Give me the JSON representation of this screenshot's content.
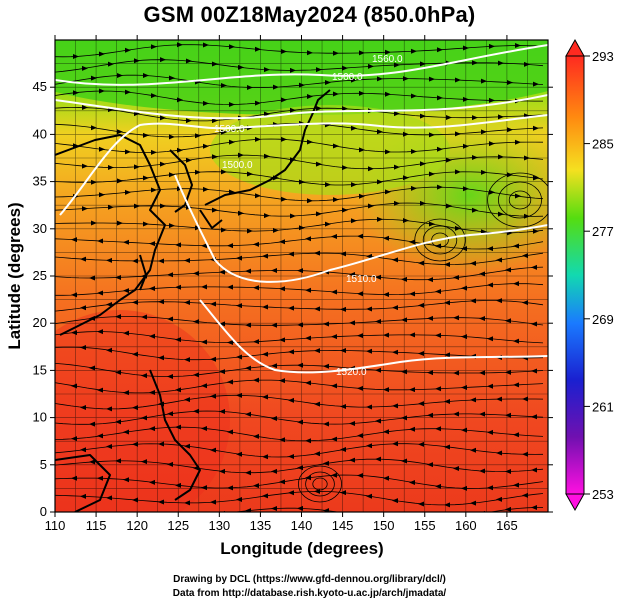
{
  "title": "GSM 00Z18May2024 (850.0hPa)",
  "map": {
    "xlabel": "Longitude (degrees)",
    "ylabel": "Latitude  (degrees)",
    "lon_range": [
      110,
      170
    ],
    "lat_range": [
      0,
      50
    ],
    "lon_ticks": [
      "110",
      "115",
      "120",
      "125",
      "130",
      "135",
      "140",
      "145",
      "150",
      "155",
      "160",
      "165"
    ],
    "lat_ticks": [
      "0",
      "5",
      "10",
      "15",
      "20",
      "25",
      "30",
      "35",
      "40",
      "45"
    ],
    "contour_labels": [
      "1560.0",
      "1500.0",
      "1500.0",
      "1500.0",
      "1520.0",
      "1510.0"
    ],
    "colorbar": {
      "ticks": [
        "293",
        "285",
        "277",
        "269",
        "261",
        "253"
      ],
      "colors": [
        "#ff2a20",
        "#ff8a10",
        "#f5e020",
        "#55dd10",
        "#12d9b0",
        "#1a7aff",
        "#1a20d0",
        "#7010b0",
        "#ff10e0"
      ]
    },
    "colors": {
      "warm": "#f04018",
      "mid": "#f0a020",
      "cool": "#70d010",
      "contour": "#ffffff",
      "coast": "#000000"
    }
  },
  "credits": {
    "line1": "Drawing by DCL (https://www.gfd-dennou.org/library/dcl/)",
    "line2": "Data from http://database.rish.kyoto-u.ac.jp/arch/jmadata/"
  }
}
